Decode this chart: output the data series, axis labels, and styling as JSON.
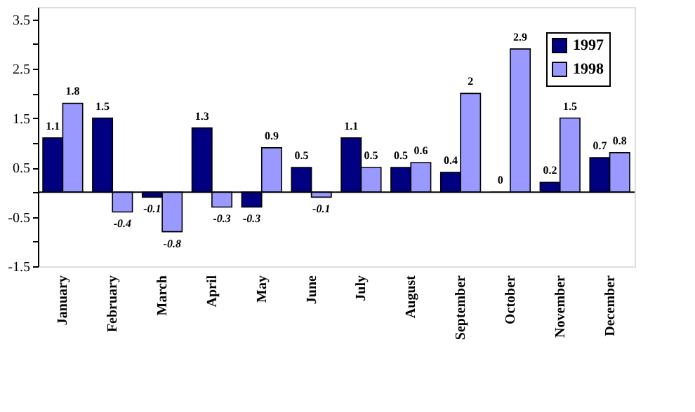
{
  "chart_data": {
    "type": "bar",
    "categories": [
      "January",
      "February",
      "March",
      "April",
      "May",
      "June",
      "July",
      "August",
      "September",
      "October",
      "November",
      "December"
    ],
    "series": [
      {
        "name": "1997",
        "color": "#000080",
        "values": [
          1.1,
          1.5,
          -0.1,
          1.3,
          -0.3,
          0.5,
          1.1,
          0.5,
          0.4,
          0,
          0.2,
          0.7
        ]
      },
      {
        "name": "1998",
        "color": "#9999ff",
        "values": [
          1.8,
          -0.4,
          -0.8,
          -0.3,
          0.9,
          -0.1,
          0.5,
          0.6,
          2,
          2.9,
          1.5,
          0.8
        ]
      }
    ],
    "ylim": [
      -1.5,
      3.75
    ],
    "yticks": [
      -1.5,
      {
        "value": -1,
        "label": null
      },
      -0.5,
      {
        "value": 0,
        "label": null
      },
      0.5,
      {
        "value": 1,
        "label": null
      },
      1.5,
      {
        "value": 2,
        "label": null
      },
      2.5,
      {
        "value": 3,
        "label": null
      },
      3.5
    ],
    "ref_lines": [
      {
        "axis": "y",
        "value": 0,
        "label": null,
        "color": "#000000"
      }
    ],
    "data_labels": true,
    "legend": "top right",
    "grid": false
  }
}
